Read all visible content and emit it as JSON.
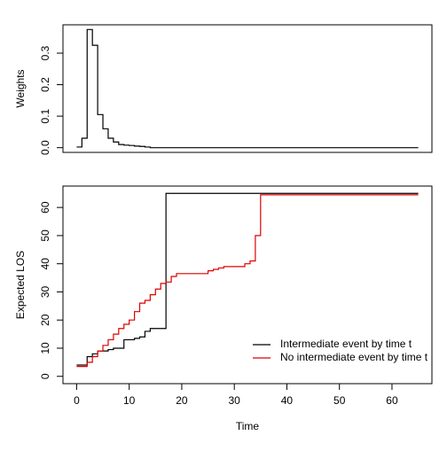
{
  "chart_data": [
    {
      "type": "step",
      "ylabel": "Weights",
      "xlim": [
        -2.6,
        67.6
      ],
      "ylim": [
        -0.015,
        0.39
      ],
      "yticks": [
        {
          "value": 0,
          "label": "0.0"
        },
        0.1,
        0.2,
        0.3
      ],
      "series": [
        {
          "color": "#000000",
          "x": [
            0,
            1,
            2,
            3,
            4,
            5,
            6,
            7,
            8,
            9,
            10,
            11,
            12,
            13,
            14,
            65
          ],
          "values": [
            0.002,
            0.03,
            0.375,
            0.325,
            0.105,
            0.06,
            0.03,
            0.018,
            0.01,
            0.008,
            0.007,
            0.005,
            0.004,
            0.002,
            0,
            0
          ]
        }
      ]
    },
    {
      "type": "step",
      "ylabel": "Expected LOS",
      "xlabel": "Time",
      "xlim": [
        -2.6,
        67.6
      ],
      "ylim": [
        -2.6,
        67.6
      ],
      "xticks": [
        0,
        10,
        20,
        30,
        40,
        50,
        60
      ],
      "yticks": [
        0,
        10,
        20,
        30,
        40,
        50,
        60
      ],
      "legend": "bottom-right",
      "series": [
        {
          "name": "Intermediate event by time t",
          "color": "#000000",
          "x": [
            0,
            2,
            3,
            4,
            6,
            7,
            9,
            10,
            11,
            12,
            13,
            14,
            17,
            65
          ],
          "values": [
            4,
            7,
            8,
            9,
            9.5,
            10,
            13,
            13,
            13.5,
            14,
            16,
            17,
            65,
            65
          ]
        },
        {
          "name": "No intermediate event by time t",
          "color": "#dd0000",
          "x": [
            0,
            2,
            3,
            4,
            5,
            6,
            7,
            8,
            9,
            10,
            11,
            12,
            13,
            14,
            15,
            16,
            17,
            18,
            19,
            20,
            25,
            26,
            27,
            28,
            30,
            32,
            33,
            34,
            35,
            65
          ],
          "values": [
            3.5,
            5,
            7,
            9,
            11,
            13,
            15,
            17,
            18.5,
            20,
            23,
            26,
            27,
            29,
            31,
            33,
            33.5,
            35.5,
            36.5,
            36.5,
            37.5,
            38,
            38.5,
            39,
            39,
            40,
            41,
            50,
            64.5,
            64.5
          ]
        }
      ]
    }
  ]
}
